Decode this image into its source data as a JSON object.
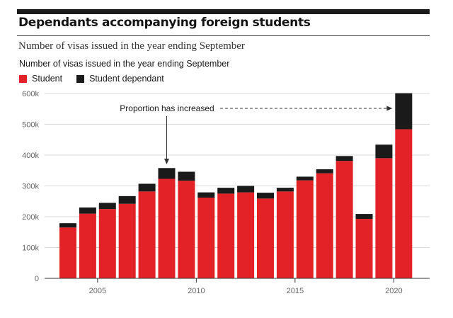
{
  "header": {
    "title": "Dependants accompanying foreign students",
    "subtitle": "Number of visas issued in the year ending September"
  },
  "colors": {
    "student": "#e32228",
    "student_dependant": "#1a1a1a",
    "gridline": "#d9d9d9",
    "axis_text": "#666666"
  },
  "chart_data": {
    "type": "bar",
    "stacked": true,
    "title": "Number of visas issued in the year ending September",
    "x": [
      2004,
      2005,
      2006,
      2007,
      2008,
      2009,
      2010,
      2011,
      2012,
      2013,
      2014,
      2015,
      2016,
      2017,
      2018,
      2019,
      2020,
      2021,
      2022
    ],
    "series": [
      {
        "name": "Student",
        "values": [
          165000,
          210000,
          225000,
          242000,
          282000,
          323000,
          317000,
          262000,
          275000,
          279000,
          259000,
          282000,
          318000,
          341000,
          381000,
          193000,
          390000,
          484000,
          0
        ]
      },
      {
        "name": "Student dependant",
        "values": [
          14000,
          20000,
          20000,
          25000,
          25000,
          35000,
          29000,
          17000,
          19000,
          21000,
          19000,
          12000,
          12000,
          13000,
          16000,
          16000,
          44000,
          117000,
          0
        ]
      }
    ],
    "ylim": [
      0,
      600000
    ],
    "yticks": [
      0,
      100000,
      200000,
      300000,
      400000,
      500000,
      600000
    ],
    "ytick_labels": [
      "0",
      "100k",
      "200k",
      "300k",
      "400k",
      "500k",
      "600k"
    ],
    "xticks": [
      2005,
      2010,
      2015,
      2020
    ],
    "xtick_labels": [
      "2005",
      "2010",
      "2015",
      "2020"
    ],
    "grid": true,
    "legend_position": "top-left",
    "annotation": {
      "text": "Proportion has increased"
    }
  }
}
